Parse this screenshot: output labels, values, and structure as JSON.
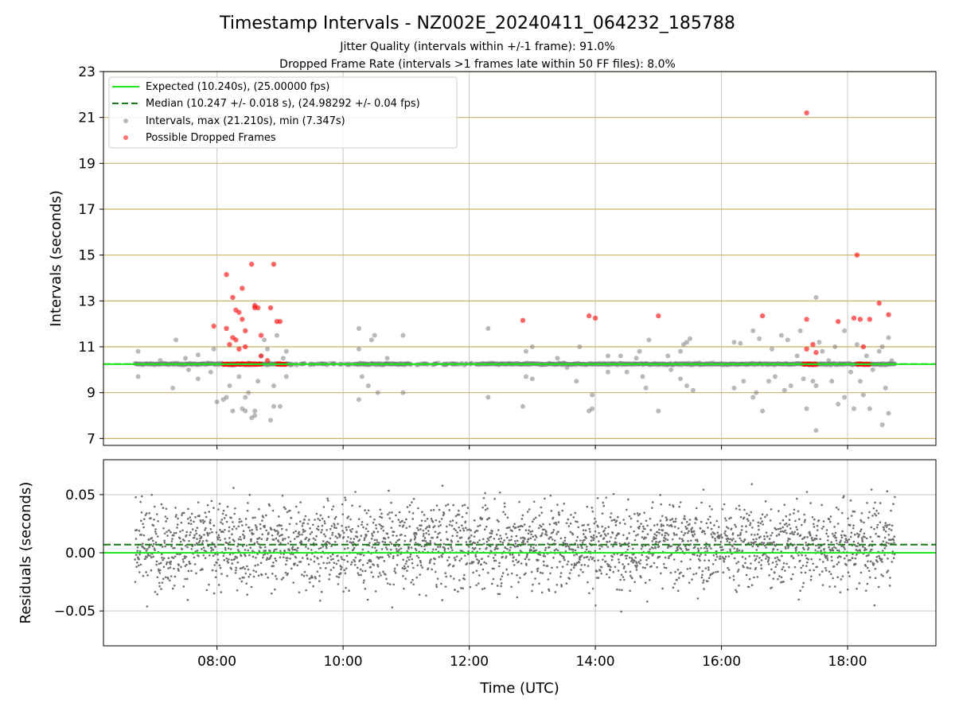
{
  "chart_data": [
    {
      "type": "scatter",
      "title": "Timestamp Intervals - NZ002E_20240411_064232_185788",
      "subtitle_1": "Jitter Quality (intervals within +/-1 frame): 91.0%",
      "subtitle_2": "Dropped Frame Rate (intervals >1 frames late within 50 FF files): 8.0%",
      "ylabel": "Intervals (seconds)",
      "ylim": [
        6.7,
        23
      ],
      "yticks": [
        "7",
        "9",
        "11",
        "13",
        "15",
        "17",
        "19",
        "21",
        "23"
      ],
      "xlim_hours": [
        6.2,
        19.4
      ],
      "grid": true,
      "legend_position": "upper-left",
      "legend": [
        "Expected (10.240s), (25.00000 fps)",
        "Median (10.247 +/- 0.018 s), (24.98292 +/- 0.04 fps)",
        "Intervals, max (21.210s), min (7.347s)",
        "Possible Dropped Frames"
      ],
      "expected_interval": 10.24,
      "median_interval": 10.247,
      "colors": {
        "expected": "#1ee81e",
        "median": "#1a7a1a",
        "intervals": "#808080",
        "dropped": "#ff0000",
        "frame_gridlines": "#c8b56a"
      },
      "intervals_series": {
        "x_range_hours": [
          6.7,
          18.75
        ],
        "baseline": 10.247,
        "max": 21.21,
        "min": 7.347,
        "outliers": [
          [
            6.75,
            10.8
          ],
          [
            6.75,
            9.7
          ],
          [
            7.1,
            10.4
          ],
          [
            7.3,
            9.2
          ],
          [
            7.35,
            11.3
          ],
          [
            7.5,
            10.5
          ],
          [
            7.55,
            10.0
          ],
          [
            7.7,
            10.65
          ],
          [
            7.7,
            9.6
          ],
          [
            7.85,
            10.3
          ],
          [
            7.9,
            9.9
          ],
          [
            7.95,
            10.9
          ],
          [
            8.0,
            8.6
          ],
          [
            8.1,
            8.7
          ],
          [
            8.15,
            8.8
          ],
          [
            8.2,
            9.3
          ],
          [
            8.25,
            8.2
          ],
          [
            8.35,
            9.7
          ],
          [
            8.4,
            8.3
          ],
          [
            8.45,
            8.2
          ],
          [
            8.45,
            8.8
          ],
          [
            8.5,
            9.0
          ],
          [
            8.55,
            7.9
          ],
          [
            8.6,
            8.0
          ],
          [
            8.6,
            8.2
          ],
          [
            8.65,
            9.5
          ],
          [
            8.7,
            10.6
          ],
          [
            8.75,
            11.3
          ],
          [
            8.8,
            10.9
          ],
          [
            8.85,
            7.8
          ],
          [
            8.9,
            9.3
          ],
          [
            8.9,
            8.4
          ],
          [
            8.95,
            11.5
          ],
          [
            9.0,
            8.4
          ],
          [
            9.05,
            10.5
          ],
          [
            9.1,
            10.8
          ],
          [
            9.1,
            9.7
          ],
          [
            10.25,
            11.8
          ],
          [
            10.25,
            10.9
          ],
          [
            10.3,
            9.7
          ],
          [
            10.25,
            8.7
          ],
          [
            10.4,
            9.3
          ],
          [
            10.45,
            11.3
          ],
          [
            10.5,
            11.5
          ],
          [
            10.55,
            9.0
          ],
          [
            10.7,
            10.5
          ],
          [
            10.95,
            11.5
          ],
          [
            10.95,
            9.0
          ],
          [
            12.3,
            11.8
          ],
          [
            12.3,
            8.8
          ],
          [
            12.85,
            8.4
          ],
          [
            12.9,
            10.8
          ],
          [
            12.9,
            9.7
          ],
          [
            13.0,
            11.0
          ],
          [
            13.0,
            9.6
          ],
          [
            13.4,
            10.5
          ],
          [
            13.5,
            10.3
          ],
          [
            13.55,
            10.1
          ],
          [
            13.7,
            9.5
          ],
          [
            13.75,
            11.0
          ],
          [
            13.9,
            8.2
          ],
          [
            13.95,
            8.9
          ],
          [
            13.95,
            8.3
          ],
          [
            14.2,
            10.6
          ],
          [
            14.2,
            9.9
          ],
          [
            14.4,
            10.6
          ],
          [
            14.5,
            9.9
          ],
          [
            14.65,
            10.5
          ],
          [
            14.7,
            10.8
          ],
          [
            14.75,
            9.7
          ],
          [
            14.8,
            9.2
          ],
          [
            14.85,
            11.3
          ],
          [
            15.0,
            8.2
          ],
          [
            15.15,
            10.6
          ],
          [
            15.2,
            10.0
          ],
          [
            15.35,
            10.8
          ],
          [
            15.35,
            9.6
          ],
          [
            15.4,
            11.1
          ],
          [
            15.45,
            11.2
          ],
          [
            15.5,
            11.35
          ],
          [
            15.45,
            9.3
          ],
          [
            15.55,
            9.1
          ],
          [
            15.65,
            10.3
          ],
          [
            16.2,
            9.2
          ],
          [
            16.2,
            11.2
          ],
          [
            16.3,
            11.15
          ],
          [
            16.35,
            9.5
          ],
          [
            16.5,
            8.8
          ],
          [
            16.5,
            11.7
          ],
          [
            16.55,
            9.0
          ],
          [
            16.6,
            11.35
          ],
          [
            16.65,
            8.2
          ],
          [
            16.75,
            9.5
          ],
          [
            16.8,
            10.9
          ],
          [
            16.85,
            9.7
          ],
          [
            16.95,
            11.5
          ],
          [
            17.0,
            9.1
          ],
          [
            17.05,
            11.3
          ],
          [
            17.1,
            9.3
          ],
          [
            17.2,
            10.6
          ],
          [
            17.25,
            11.7
          ],
          [
            17.3,
            9.6
          ],
          [
            17.35,
            8.3
          ],
          [
            17.45,
            9.5
          ],
          [
            17.5,
            7.35
          ],
          [
            17.5,
            13.15
          ],
          [
            17.5,
            9.3
          ],
          [
            17.55,
            11.2
          ],
          [
            17.6,
            10.8
          ],
          [
            17.7,
            10.4
          ],
          [
            17.75,
            9.5
          ],
          [
            17.8,
            11.0
          ],
          [
            17.85,
            8.5
          ],
          [
            17.95,
            11.7
          ],
          [
            17.95,
            8.8
          ],
          [
            18.05,
            9.9
          ],
          [
            18.1,
            8.3
          ],
          [
            18.15,
            11.1
          ],
          [
            18.2,
            9.5
          ],
          [
            18.25,
            8.9
          ],
          [
            18.3,
            10.6
          ],
          [
            18.35,
            8.3
          ],
          [
            18.4,
            10.0
          ],
          [
            18.5,
            10.8
          ],
          [
            18.55,
            7.6
          ],
          [
            18.55,
            11.0
          ],
          [
            18.6,
            9.2
          ],
          [
            18.65,
            8.1
          ],
          [
            18.65,
            11.4
          ],
          [
            18.7,
            10.4
          ]
        ]
      },
      "dropped_frames": [
        [
          7.95,
          11.9
        ],
        [
          8.15,
          14.15
        ],
        [
          8.15,
          11.8
        ],
        [
          8.2,
          11.1
        ],
        [
          8.25,
          13.15
        ],
        [
          8.25,
          11.4
        ],
        [
          8.3,
          12.6
        ],
        [
          8.3,
          11.3
        ],
        [
          8.35,
          10.9
        ],
        [
          8.35,
          12.5
        ],
        [
          8.4,
          13.55
        ],
        [
          8.4,
          12.2
        ],
        [
          8.45,
          11.7
        ],
        [
          8.45,
          11.0
        ],
        [
          8.55,
          14.6
        ],
        [
          8.6,
          12.7
        ],
        [
          8.6,
          12.8
        ],
        [
          8.65,
          12.7
        ],
        [
          8.7,
          11.5
        ],
        [
          8.7,
          10.6
        ],
        [
          8.8,
          10.4
        ],
        [
          8.85,
          12.7
        ],
        [
          8.9,
          14.6
        ],
        [
          8.95,
          12.1
        ],
        [
          9.0,
          12.1
        ],
        [
          12.85,
          12.15
        ],
        [
          13.9,
          12.35
        ],
        [
          14.0,
          12.25
        ],
        [
          15.0,
          12.35
        ],
        [
          16.65,
          12.35
        ],
        [
          17.35,
          21.2
        ],
        [
          17.35,
          12.2
        ],
        [
          17.35,
          10.9
        ],
        [
          17.45,
          11.1
        ],
        [
          17.5,
          10.75
        ],
        [
          17.85,
          12.1
        ],
        [
          18.1,
          12.25
        ],
        [
          18.15,
          15.0
        ],
        [
          18.2,
          12.2
        ],
        [
          18.25,
          11.0
        ],
        [
          18.35,
          12.2
        ],
        [
          18.5,
          12.9
        ],
        [
          18.65,
          12.4
        ]
      ],
      "dropped_clusters_at_10_24": [
        [
          8.1,
          8.7
        ],
        [
          8.95,
          9.1
        ],
        [
          17.3,
          17.5
        ],
        [
          18.15,
          18.35
        ]
      ]
    },
    {
      "type": "scatter",
      "xlabel": "Time (UTC)",
      "ylabel": "Residuals (seconds)",
      "ylim": [
        -0.08,
        0.08
      ],
      "yticks": [
        "−0.05",
        "0.00",
        "0.05"
      ],
      "xticks": [
        "08:00",
        "10:00",
        "12:00",
        "14:00",
        "16:00",
        "18:00"
      ],
      "xlim_hours": [
        6.2,
        19.4
      ],
      "grid": true,
      "expected_residual": 0.0,
      "median_residual": 0.007,
      "residual_spread_sd": 0.018,
      "x_range_hours": [
        6.7,
        18.75
      ]
    }
  ]
}
